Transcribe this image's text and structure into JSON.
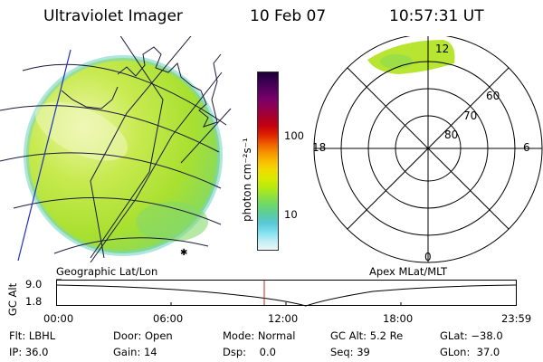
{
  "header": {
    "title": "Ultraviolet Imager",
    "date": "10 Feb 07",
    "time": "10:57:31 UT"
  },
  "colorbar": {
    "unit": "photon cm⁻²s⁻¹",
    "ticks": [
      "100",
      "10"
    ],
    "colors": [
      "#1b0036",
      "#3a004f",
      "#5a0060",
      "#7a006a",
      "#90004f",
      "#a8002c",
      "#c40010",
      "#dc2000",
      "#ee5a00",
      "#f89000",
      "#f8bc00",
      "#f0dc00",
      "#d8ea00",
      "#b4ea10",
      "#8ee040",
      "#6cd86c",
      "#5ccca0",
      "#5ac8d8",
      "#7ee0ee",
      "#c0eef4",
      "#eaf6f6"
    ]
  },
  "left_panel": {
    "label": "Geographic Lat/Lon",
    "colors": {
      "disk": "#b4e41e",
      "bright": "#eaf6a0",
      "dim": "#8edc4a",
      "edge": "#6ecfc8"
    }
  },
  "right_panel": {
    "label": "Apex MLat/MLT",
    "ring_labels": [
      "60",
      "70",
      "80"
    ],
    "hour_labels": {
      "top": "12",
      "left": "18",
      "right": "6",
      "bottom": "0"
    },
    "colors": {
      "oval": "#b4e41e"
    }
  },
  "timeline": {
    "axis_title": "GC Alt",
    "y_ticks": [
      "9.0",
      "1.8"
    ],
    "x_ticks": [
      "00:00",
      "06:00",
      "12:00",
      "18:00",
      "23:59"
    ],
    "current_time_color": "#d02020"
  },
  "status": {
    "row1": [
      "Flt: LBHL",
      "Door: Open",
      "Mode: Normal",
      "GC Alt: 5.2 Re",
      "GLat: −38.0"
    ],
    "row2": [
      "IP: 36.0",
      "Gain: 14",
      "Dsp:    0.0",
      "Seq: 39",
      "GLon:  37.0"
    ]
  }
}
